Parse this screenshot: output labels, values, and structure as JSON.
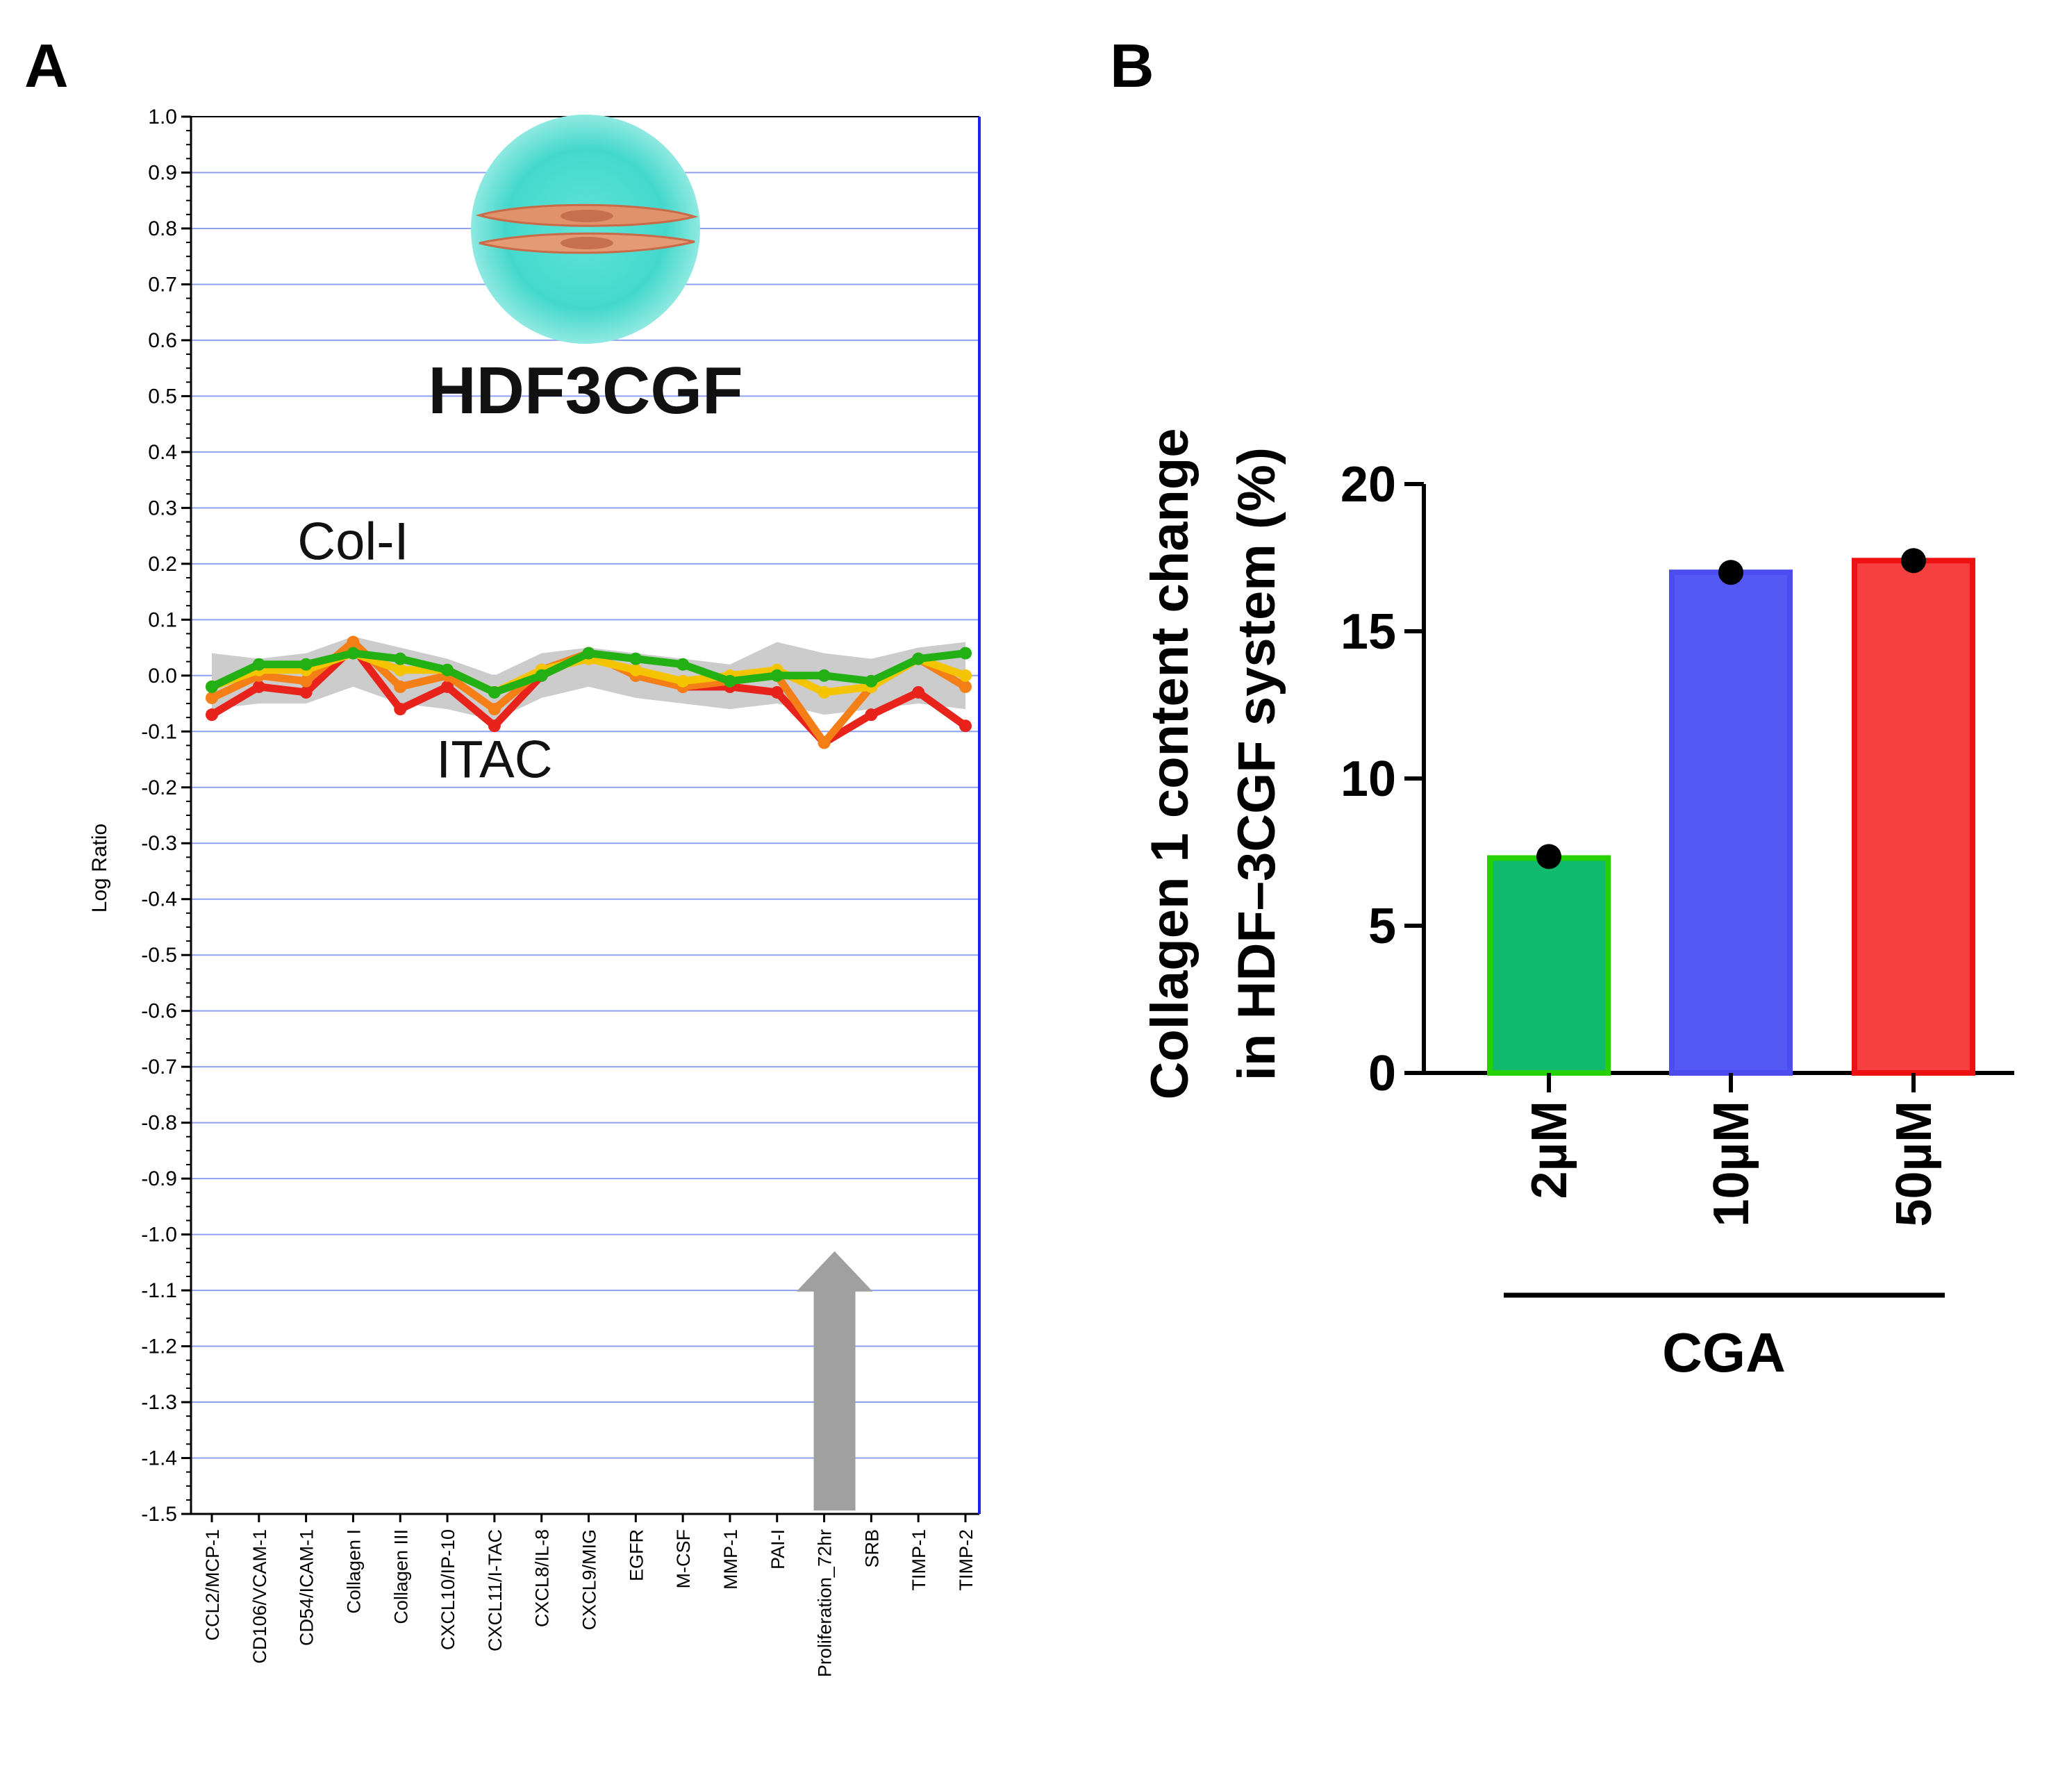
{
  "chart_data": [
    {
      "panel": "A",
      "type": "line",
      "title": "HDF3CGF",
      "xlabel": "",
      "ylabel": "Log Ratio",
      "ylim": [
        -1.5,
        1.0
      ],
      "yticks": [
        "1.0",
        "0.9",
        "0.8",
        "0.7",
        "0.6",
        "0.5",
        "0.4",
        "0.3",
        "0.2",
        "0.1",
        "0.0",
        "-0.1",
        "-0.2",
        "-0.3",
        "-0.4",
        "-0.5",
        "-0.6",
        "-0.7",
        "-0.8",
        "-0.9",
        "-1.0",
        "-1.1",
        "-1.2",
        "-1.3",
        "-1.4",
        "-1.5"
      ],
      "grid": true,
      "categories": [
        "CCL2/MCP-1",
        "CD106/VCAM-1",
        "CD54/ICAM-1",
        "Collagen I",
        "Collagen III",
        "CXCL10/IP-10",
        "CXCL11/I-TAC",
        "CXCL8/IL-8",
        "CXCL9/MIG",
        "EGFR",
        "M-CSF",
        "MMP-1",
        "PAI-I",
        "Proliferation_72hr",
        "SRB",
        "TIMP-1",
        "TIMP-2"
      ],
      "band": {
        "upper": [
          0.04,
          0.03,
          0.04,
          0.07,
          0.05,
          0.03,
          0.0,
          0.04,
          0.05,
          0.04,
          0.03,
          0.02,
          0.06,
          0.04,
          0.03,
          0.05,
          0.06
        ],
        "lower": [
          -0.06,
          -0.05,
          -0.05,
          -0.02,
          -0.05,
          -0.06,
          -0.08,
          -0.04,
          -0.02,
          -0.04,
          -0.05,
          -0.06,
          -0.05,
          -0.07,
          -0.06,
          -0.05,
          -0.06
        ],
        "color": "#cccccc"
      },
      "series": [
        {
          "name": "red",
          "color": "#e8231b",
          "values": [
            -0.07,
            -0.02,
            -0.03,
            0.05,
            -0.06,
            -0.02,
            -0.09,
            0.0,
            0.04,
            0.0,
            -0.02,
            -0.02,
            -0.03,
            -0.12,
            -0.07,
            -0.03,
            -0.09
          ]
        },
        {
          "name": "orange",
          "color": "#f57f17",
          "values": [
            -0.04,
            0.0,
            -0.01,
            0.06,
            -0.02,
            0.0,
            -0.06,
            0.01,
            0.04,
            0.0,
            -0.02,
            -0.01,
            0.0,
            -0.12,
            -0.02,
            0.03,
            -0.02
          ]
        },
        {
          "name": "yellow",
          "color": "#f5c400",
          "values": [
            -0.02,
            0.01,
            0.01,
            0.04,
            0.01,
            0.01,
            -0.03,
            0.01,
            0.03,
            0.01,
            -0.01,
            0.0,
            0.01,
            -0.03,
            -0.02,
            0.03,
            0.0
          ]
        },
        {
          "name": "green",
          "color": "#22b014",
          "values": [
            -0.02,
            0.02,
            0.02,
            0.04,
            0.03,
            0.01,
            -0.03,
            0.0,
            0.04,
            0.03,
            0.02,
            -0.01,
            0.0,
            0.0,
            -0.01,
            0.03,
            0.04
          ]
        }
      ],
      "annotations": [
        {
          "text": "Col-I",
          "x_category": "Collagen I",
          "y": 0.24
        },
        {
          "text": "ITAC",
          "x_category": "CXCL11/I-TAC",
          "y": -0.15
        }
      ],
      "arrow": {
        "category": "Proliferation_72hr",
        "y_from": -1.5,
        "y_to": -1.03,
        "color": "#a0a0a0"
      }
    },
    {
      "panel": "B",
      "type": "bar",
      "title": "",
      "xlabel": "CGA",
      "ylabel": "Collagen 1 content change in HDF–3CGF system (%)",
      "ylabel_lines": [
        "Collagen 1 content change",
        "in HDF–3CGF system (%)"
      ],
      "ylim": [
        0,
        20
      ],
      "yticks": [
        "0",
        "5",
        "10",
        "15",
        "20"
      ],
      "grid": false,
      "categories": [
        "2µM",
        "10µM",
        "50µM"
      ],
      "values": [
        7.3,
        17.0,
        17.4
      ],
      "colors": [
        {
          "fill": "#10bb70",
          "stroke": "#26d100"
        },
        {
          "fill": "#5559f4",
          "stroke": "#4c4cf0"
        },
        {
          "fill": "#f5403f",
          "stroke": "#ee1111"
        }
      ],
      "points": [
        7.35,
        17.0,
        17.4
      ]
    }
  ],
  "panels": {
    "a_label": "A",
    "b_label": "B"
  },
  "logo": {
    "title": "HDF3CGF"
  }
}
